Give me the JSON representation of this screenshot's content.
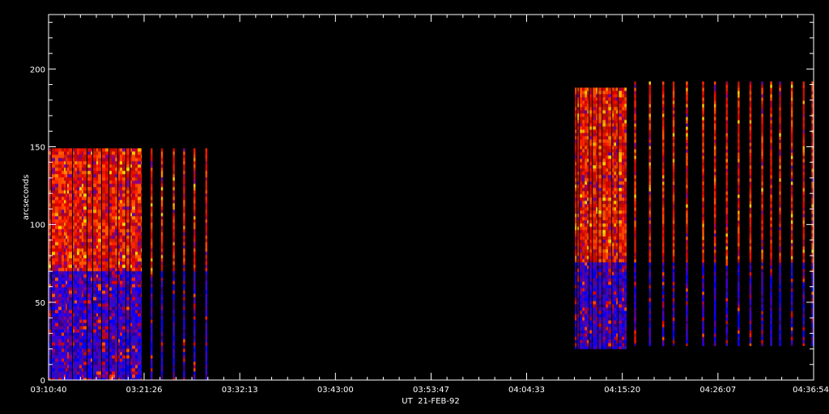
{
  "chart_data": {
    "type": "heatmap",
    "title": "",
    "xlabel": "UT  21-FEB-92",
    "ylabel": "arcseconds",
    "xlim": [
      "03:10:40",
      "04:36:54"
    ],
    "ylim": [
      0,
      235
    ],
    "y_ticks": [
      0,
      50,
      100,
      150,
      200
    ],
    "x_ticks": [
      "03:10:40",
      "03:21:26",
      "03:32:13",
      "03:43:00",
      "03:53:47",
      "04:04:33",
      "04:15:20",
      "04:26:07",
      "04:36:54"
    ],
    "grid": false,
    "legend": "none",
    "colormap": [
      "#0000ff",
      "#4400cc",
      "#880088",
      "#cc2200",
      "#ff3300",
      "#ff6600",
      "#ffcc00"
    ],
    "background_color": "#000000",
    "axis_color": "#ffffff",
    "blocks": [
      {
        "t_start": "03:10:40",
        "t_end": "03:21:10",
        "y_min": 0,
        "y_max": 149,
        "boundary_y": 70,
        "lower_band": "blue",
        "upper_band": "red",
        "sampling": "dense"
      },
      {
        "t_start": "03:21:40",
        "t_end": "03:28:20",
        "y_min": 0,
        "y_max": 149,
        "boundary_y": 70,
        "lower_band": "blue",
        "upper_band": "red",
        "sampling": "sparse",
        "strip_times": [
          "03:22:10",
          "03:23:20",
          "03:24:40",
          "03:25:50",
          "03:27:00",
          "03:28:20"
        ]
      },
      {
        "t_start": "04:10:00",
        "t_end": "04:15:50",
        "y_min": 20,
        "y_max": 188,
        "boundary_y": 75,
        "lower_band": "blue",
        "upper_band": "red",
        "sampling": "dense"
      },
      {
        "t_start": "04:17:00",
        "t_end": "04:36:54",
        "y_min": 22,
        "y_max": 192,
        "boundary_y": 75,
        "lower_band": "blue",
        "upper_band": "red",
        "sampling": "sparse",
        "strip_times": [
          "04:16:40",
          "04:18:20",
          "04:19:50",
          "04:21:00",
          "04:22:30",
          "04:24:20",
          "04:25:40",
          "04:27:00",
          "04:28:20",
          "04:29:40",
          "04:31:00",
          "04:32:00",
          "04:33:00",
          "04:34:20",
          "04:35:40",
          "04:36:40"
        ]
      }
    ]
  }
}
